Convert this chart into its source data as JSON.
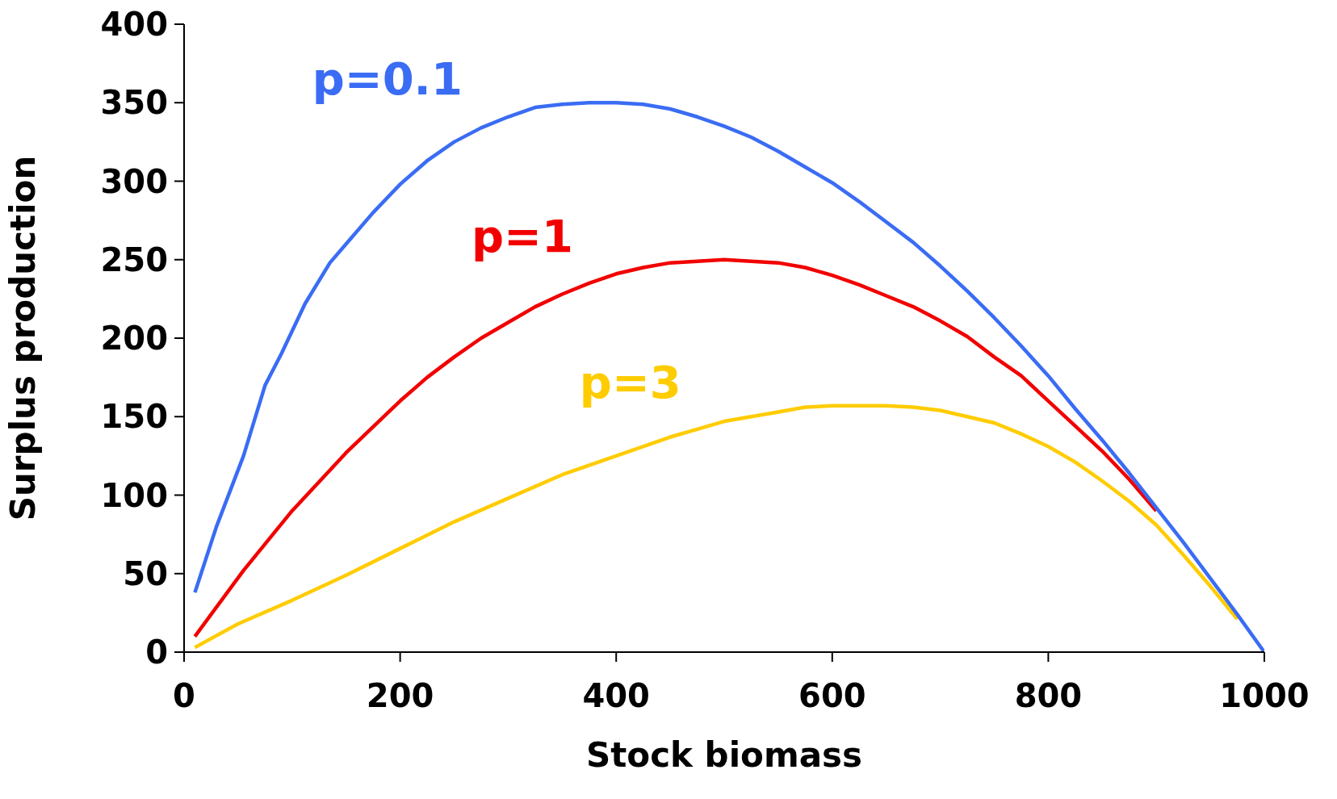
{
  "chart_data": {
    "type": "line",
    "xlabel": "Stock biomass",
    "ylabel": "Surplus production",
    "xlim": [
      0,
      1000
    ],
    "xticks": [
      0,
      200,
      400,
      600,
      800,
      1000
    ],
    "ylim": [
      0,
      400
    ],
    "yticks": [
      0,
      50,
      100,
      150,
      200,
      250,
      300,
      350,
      400
    ],
    "grid": false,
    "legend": false,
    "marker": "none",
    "line_style": "solid",
    "series": [
      {
        "name": "p=0.1",
        "color": "#3a6cf4",
        "x": [
          10,
          30,
          55,
          75,
          90,
          112,
          135,
          150,
          175,
          200,
          225,
          250,
          275,
          300,
          325,
          350,
          375,
          400,
          425,
          450,
          475,
          500,
          525,
          550,
          575,
          600,
          625,
          650,
          675,
          700,
          725,
          750,
          775,
          800,
          825,
          850,
          875,
          900,
          925,
          950,
          975,
          1000
        ],
        "values": [
          38,
          80,
          125,
          170,
          190,
          222,
          248,
          260,
          280,
          298,
          313,
          325,
          334,
          341,
          347,
          349,
          350,
          350,
          349,
          346,
          341,
          335,
          328,
          319,
          309,
          299,
          287,
          274,
          261,
          246,
          230,
          213,
          195,
          176,
          155,
          135,
          114,
          92,
          70,
          47,
          24,
          0
        ]
      },
      {
        "name": "p=1",
        "color": "#f20000",
        "x": [
          10,
          55,
          100,
          150,
          200,
          225,
          250,
          275,
          300,
          325,
          350,
          375,
          400,
          425,
          450,
          500,
          550,
          575,
          600,
          625,
          650,
          675,
          700,
          725,
          750,
          775,
          800,
          825,
          850,
          875,
          900
        ],
        "values": [
          10,
          52,
          90,
          127,
          160,
          175,
          188,
          200,
          210,
          220,
          228,
          235,
          241,
          245,
          248,
          250,
          248,
          245,
          240,
          234,
          227,
          220,
          211,
          201,
          188,
          176,
          160,
          144,
          128,
          110,
          90
        ]
      },
      {
        "name": "p=3",
        "color": "#ffcc00",
        "x": [
          10,
          50,
          100,
          150,
          200,
          250,
          300,
          350,
          400,
          450,
          475,
          500,
          550,
          575,
          600,
          650,
          675,
          700,
          725,
          750,
          775,
          800,
          825,
          850,
          875,
          900,
          925,
          950,
          975
        ],
        "values": [
          3,
          18,
          33,
          49,
          66,
          83,
          98,
          113,
          125,
          137,
          142,
          147,
          153,
          156,
          157,
          157,
          156,
          154,
          150,
          146,
          139,
          131,
          121,
          109,
          96,
          81,
          62,
          42,
          21
        ]
      }
    ]
  }
}
